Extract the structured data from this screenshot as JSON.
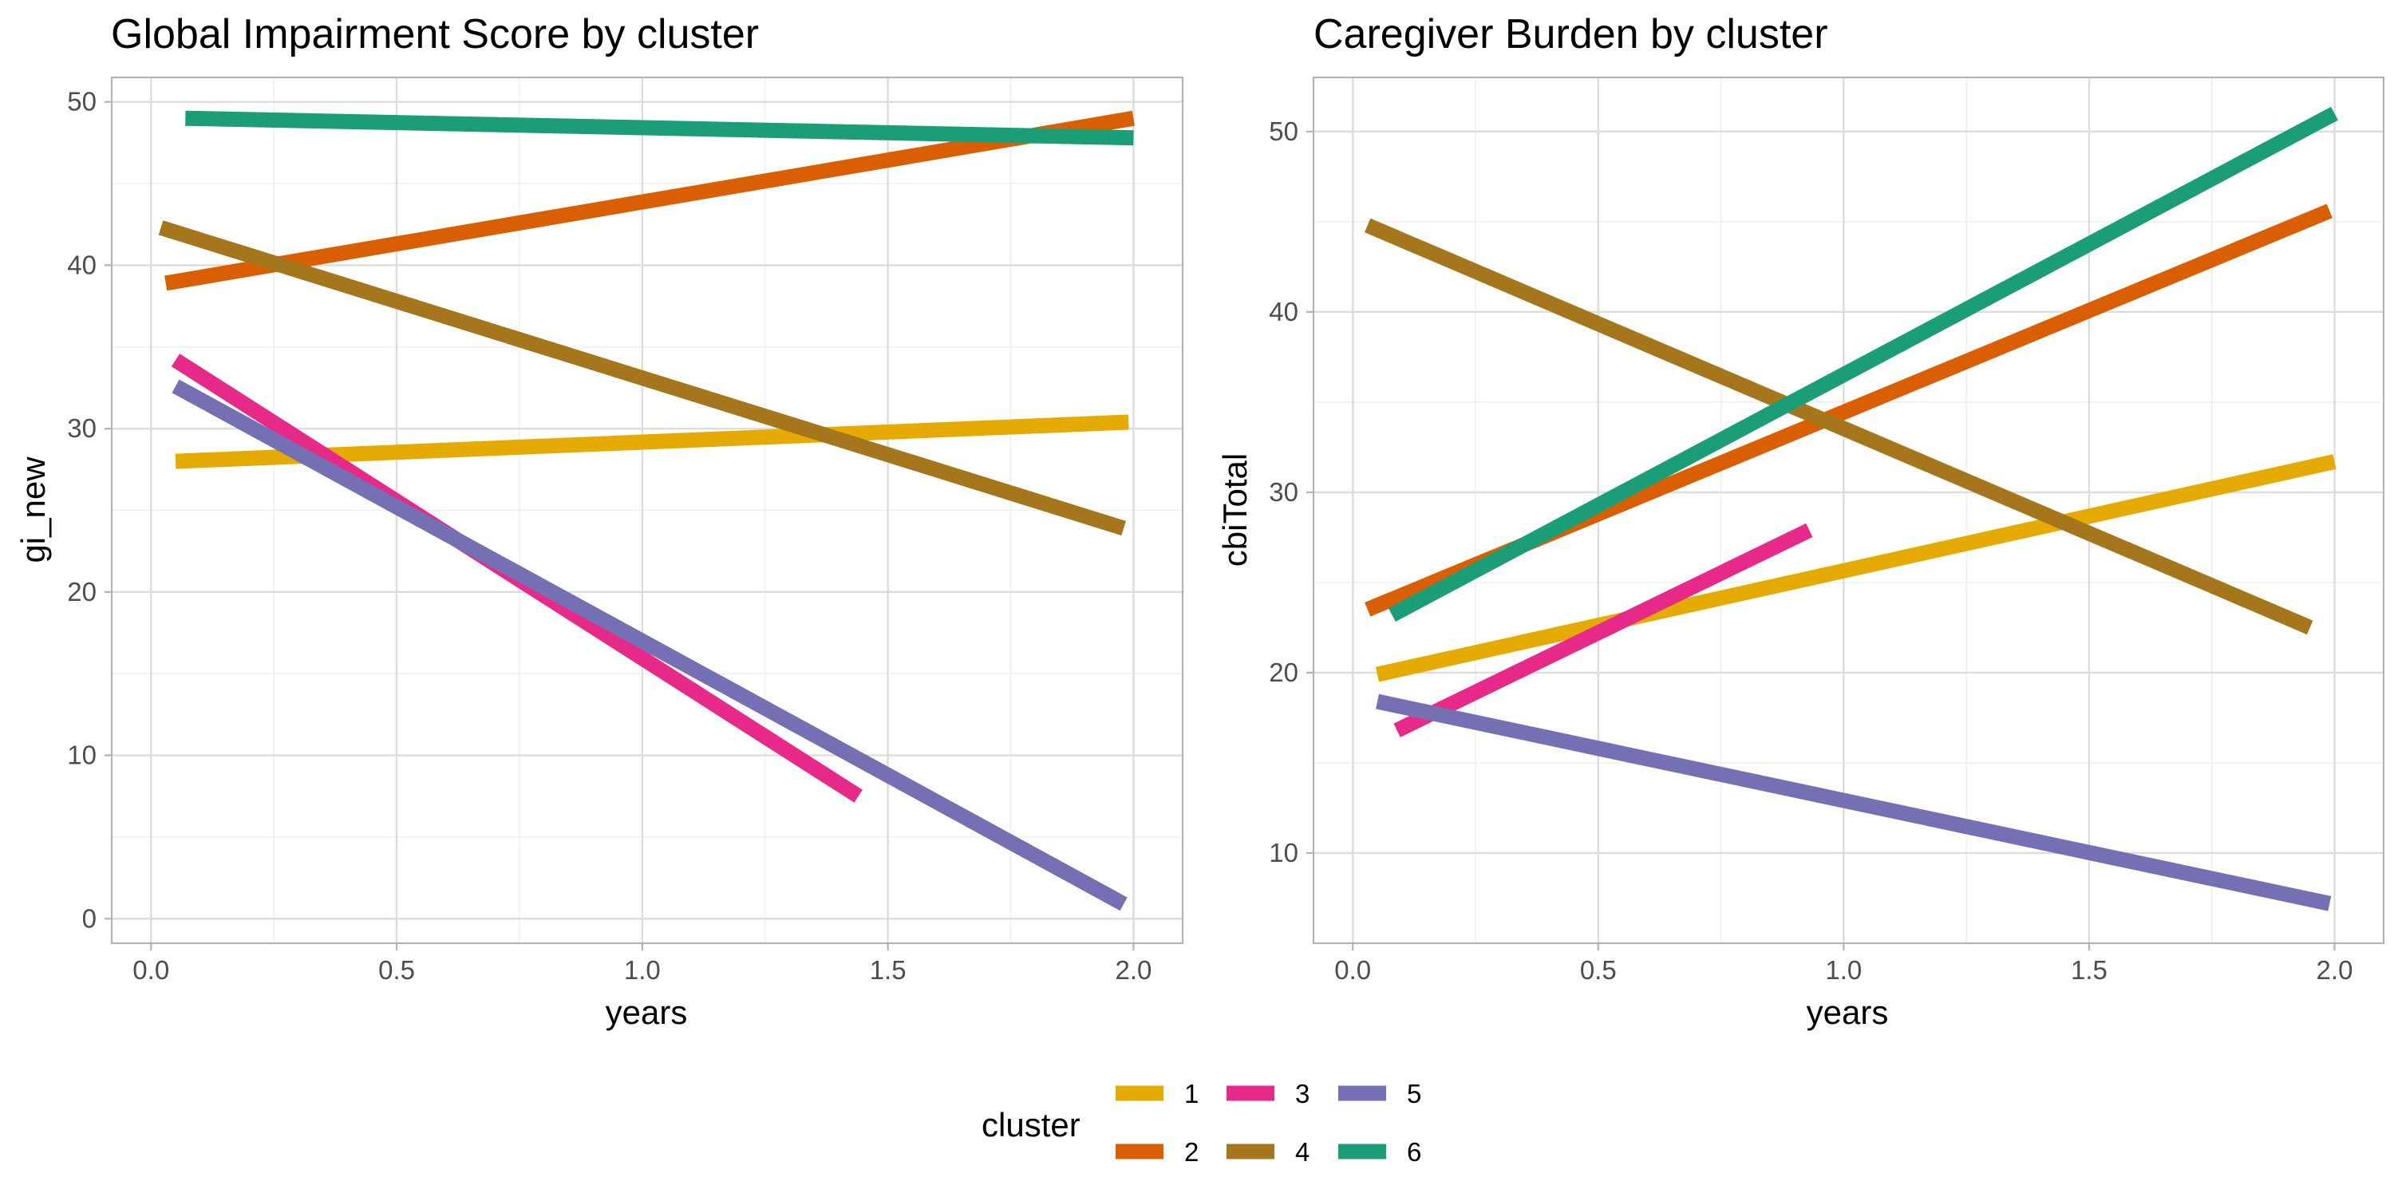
{
  "chart_data": [
    {
      "type": "line",
      "title": "Global Impairment Score by cluster",
      "xlabel": "years",
      "ylabel": "gi_new",
      "xlim": [
        -0.08,
        2.1
      ],
      "ylim": [
        -1.5,
        51.5
      ],
      "x_ticks": [
        0.0,
        0.5,
        1.0,
        1.5,
        2.0
      ],
      "x_tick_labels": [
        "0.0",
        "0.5",
        "1.0",
        "1.5",
        "2.0"
      ],
      "y_ticks": [
        0,
        10,
        20,
        30,
        40,
        50
      ],
      "y_tick_labels": [
        "0",
        "10",
        "20",
        "30",
        "40",
        "50"
      ],
      "grid": true,
      "series": [
        {
          "cluster": "1",
          "color": "#E6AB02",
          "x": [
            0.05,
            1.99
          ],
          "y": [
            28.0,
            30.4
          ]
        },
        {
          "cluster": "2",
          "color": "#D95F02",
          "x": [
            0.03,
            2.0
          ],
          "y": [
            38.9,
            49.0
          ]
        },
        {
          "cluster": "3",
          "color": "#E7298A",
          "x": [
            0.05,
            1.44
          ],
          "y": [
            34.2,
            7.5
          ]
        },
        {
          "cluster": "4",
          "color": "#A6761D",
          "x": [
            0.02,
            1.98
          ],
          "y": [
            42.3,
            23.9
          ]
        },
        {
          "cluster": "5",
          "color": "#7570B3",
          "x": [
            0.05,
            1.98
          ],
          "y": [
            32.6,
            0.9
          ]
        },
        {
          "cluster": "6",
          "color": "#1B9E77",
          "x": [
            0.07,
            2.0
          ],
          "y": [
            49.0,
            47.8
          ]
        }
      ]
    },
    {
      "type": "line",
      "title": "Caregiver Burden by cluster",
      "xlabel": "years",
      "ylabel": "cbiTotal",
      "xlim": [
        -0.08,
        2.1
      ],
      "ylim": [
        5.0,
        53.0
      ],
      "x_ticks": [
        0.0,
        0.5,
        1.0,
        1.5,
        2.0
      ],
      "x_tick_labels": [
        "0.0",
        "0.5",
        "1.0",
        "1.5",
        "2.0"
      ],
      "y_ticks": [
        10,
        20,
        30,
        40,
        50
      ],
      "y_tick_labels": [
        "10",
        "20",
        "30",
        "40",
        "50"
      ],
      "grid": true,
      "series": [
        {
          "cluster": "1",
          "color": "#E6AB02",
          "x": [
            0.05,
            2.0
          ],
          "y": [
            19.9,
            31.7
          ]
        },
        {
          "cluster": "2",
          "color": "#D95F02",
          "x": [
            0.03,
            1.99
          ],
          "y": [
            23.5,
            45.6
          ]
        },
        {
          "cluster": "3",
          "color": "#E7298A",
          "x": [
            0.09,
            0.93
          ],
          "y": [
            16.8,
            27.9
          ]
        },
        {
          "cluster": "4",
          "color": "#A6761D",
          "x": [
            0.03,
            1.95
          ],
          "y": [
            44.8,
            22.5
          ]
        },
        {
          "cluster": "5",
          "color": "#7570B3",
          "x": [
            0.05,
            1.99
          ],
          "y": [
            18.4,
            7.2
          ]
        },
        {
          "cluster": "6",
          "color": "#1B9E77",
          "x": [
            0.08,
            2.0
          ],
          "y": [
            23.2,
            51.0
          ]
        }
      ]
    }
  ],
  "legend": {
    "title": "cluster",
    "position": "bottom",
    "items": [
      {
        "label": "1",
        "color": "#E6AB02"
      },
      {
        "label": "2",
        "color": "#D95F02"
      },
      {
        "label": "3",
        "color": "#E7298A"
      },
      {
        "label": "4",
        "color": "#A6761D"
      },
      {
        "label": "5",
        "color": "#7570B3"
      },
      {
        "label": "6",
        "color": "#1B9E77"
      }
    ]
  }
}
